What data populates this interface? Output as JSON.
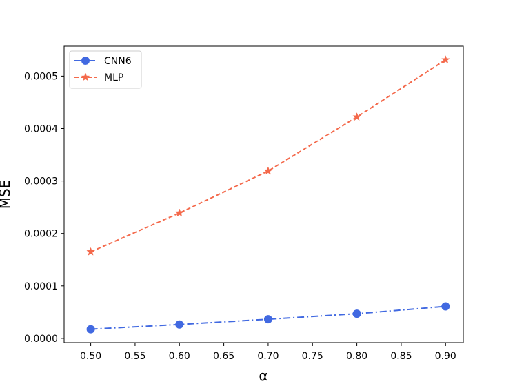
{
  "chart_data": {
    "type": "line",
    "xlabel": "α",
    "ylabel": "MSE",
    "xlim": [
      0.47,
      0.92
    ],
    "ylim": [
      -8e-06,
      0.000557
    ],
    "xticks": [
      0.5,
      0.55,
      0.6,
      0.65,
      0.7,
      0.75,
      0.8,
      0.85,
      0.9
    ],
    "xtick_labels": [
      "0.50",
      "0.55",
      "0.60",
      "0.65",
      "0.70",
      "0.75",
      "0.80",
      "0.85",
      "0.90"
    ],
    "yticks": [
      0,
      0.0001,
      0.0002,
      0.0003,
      0.0004,
      0.0005
    ],
    "ytick_labels": [
      "0.0000",
      "0.0001",
      "0.0002",
      "0.0003",
      "0.0004",
      "0.0005"
    ],
    "grid": false,
    "legend_position": "top-left",
    "x": [
      0.5,
      0.6,
      0.7,
      0.8,
      0.9
    ],
    "series": [
      {
        "name": "CNN6",
        "values": [
          1.75e-05,
          2.65e-05,
          3.65e-05,
          4.7e-05,
          6.1e-05
        ],
        "color": "#4169e1",
        "line_style": "dash-dot",
        "marker": "circle"
      },
      {
        "name": "MLP",
        "values": [
          0.000165,
          0.000239,
          0.000319,
          0.000422,
          0.000531
        ],
        "color": "#f4694b",
        "line_style": "dashed",
        "marker": "star"
      }
    ]
  }
}
